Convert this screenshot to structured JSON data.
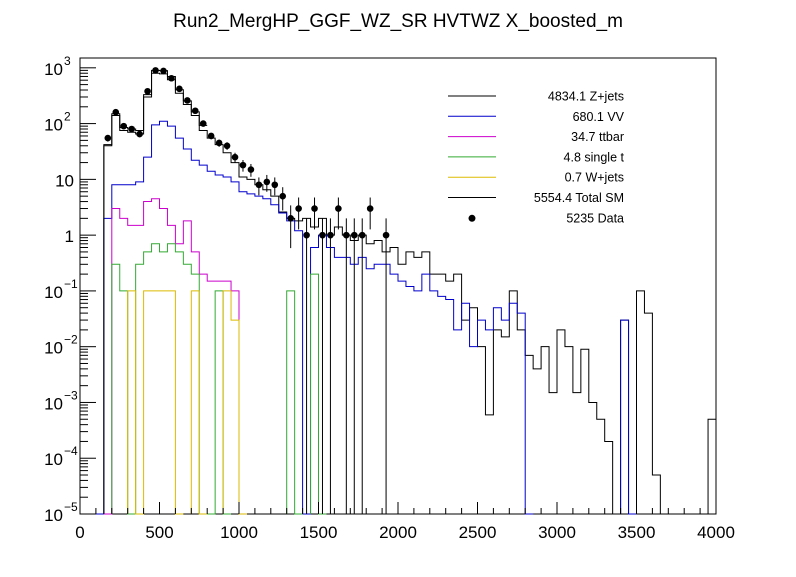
{
  "chart_data": {
    "type": "histogram",
    "title": "Run2_MergHP_GGF_WZ_SR HVTWZ  X_boosted_m",
    "xlabel": "",
    "ylabel": "",
    "xlim": [
      0,
      4000
    ],
    "ylim": [
      1e-05,
      1500
    ],
    "yscale": "log",
    "bin_width": 50,
    "grid": false,
    "legend_position": "top-right",
    "x_ticks": [
      "0",
      "500",
      "1000",
      "1500",
      "2000",
      "2500",
      "3000",
      "3500",
      "4000"
    ],
    "y_ticks": [
      {
        "base": "10",
        "exp": "3"
      },
      {
        "base": "10",
        "exp": "2"
      },
      {
        "base": "10",
        "exp": ""
      },
      {
        "base": "1",
        "exp": ""
      },
      {
        "base": "10",
        "exp": "−1"
      },
      {
        "base": "10",
        "exp": "−2"
      },
      {
        "base": "10",
        "exp": "−3"
      },
      {
        "base": "10",
        "exp": "−4"
      },
      {
        "base": "10",
        "exp": "−5"
      }
    ],
    "series": [
      {
        "name": "Z+jets",
        "total": "4834.1",
        "label": "4834.1 Z+jets",
        "color": "#000000",
        "style": "step",
        "bins": [
          [
            100,
            150,
            1e-05
          ],
          [
            150,
            200,
            40
          ],
          [
            200,
            250,
            140
          ],
          [
            250,
            300,
            75
          ],
          [
            300,
            350,
            70
          ],
          [
            350,
            400,
            65
          ],
          [
            400,
            450,
            300
          ],
          [
            450,
            500,
            800
          ],
          [
            500,
            550,
            780
          ],
          [
            550,
            600,
            610
          ],
          [
            600,
            650,
            350
          ],
          [
            650,
            700,
            220
          ],
          [
            700,
            750,
            140
          ],
          [
            750,
            800,
            75
          ],
          [
            800,
            850,
            55
          ],
          [
            850,
            900,
            42
          ],
          [
            900,
            950,
            30
          ],
          [
            950,
            1000,
            20
          ],
          [
            1000,
            1050,
            11
          ],
          [
            1050,
            1100,
            10
          ],
          [
            1100,
            1150,
            8
          ],
          [
            1150,
            1200,
            6.5
          ],
          [
            1200,
            1250,
            5
          ],
          [
            1250,
            1300,
            2.6
          ],
          [
            1300,
            1350,
            2
          ],
          [
            1350,
            1400,
            1.8
          ],
          [
            1400,
            1450,
            2
          ],
          [
            1450,
            1500,
            1.4
          ],
          [
            1500,
            1550,
            2
          ],
          [
            1550,
            1600,
            1
          ],
          [
            1600,
            1650,
            1.4
          ],
          [
            1650,
            1700,
            1
          ],
          [
            1700,
            1750,
            0.8
          ],
          [
            1750,
            1800,
            1
          ],
          [
            1800,
            1850,
            0.7
          ],
          [
            1850,
            1900,
            0.8
          ],
          [
            1900,
            1950,
            0.5
          ],
          [
            1950,
            2000,
            0.6
          ],
          [
            2000,
            2050,
            0.3
          ],
          [
            2050,
            2100,
            0.5
          ],
          [
            2100,
            2150,
            0.4
          ],
          [
            2150,
            2200,
            0.5
          ],
          [
            2200,
            2250,
            0.2
          ],
          [
            2250,
            2300,
            0.2
          ],
          [
            2300,
            2350,
            0.15
          ],
          [
            2350,
            2400,
            0.2
          ],
          [
            2400,
            2450,
            0.03
          ],
          [
            2450,
            2500,
            0.05
          ],
          [
            2500,
            2550,
            0.01
          ],
          [
            2550,
            2600,
            0.0006
          ],
          [
            2600,
            2650,
            0.02
          ],
          [
            2650,
            2700,
            0.015
          ],
          [
            2700,
            2750,
            0.1
          ],
          [
            2750,
            2800,
            0.02
          ],
          [
            2800,
            2850,
            0.007
          ],
          [
            2850,
            2900,
            0.004
          ],
          [
            2900,
            2950,
            0.01
          ],
          [
            2950,
            3000,
            0.0015
          ],
          [
            3000,
            3050,
            0.02
          ],
          [
            3050,
            3100,
            0.01
          ],
          [
            3100,
            3150,
            0.0015
          ],
          [
            3150,
            3200,
            0.009
          ],
          [
            3200,
            3250,
            0.001
          ],
          [
            3250,
            3300,
            0.0005
          ],
          [
            3300,
            3350,
            0.0002
          ],
          [
            3350,
            3400,
            1e-05
          ],
          [
            3400,
            3450,
            0.03
          ],
          [
            3450,
            3500,
            1e-05
          ],
          [
            3500,
            3550,
            0.1
          ],
          [
            3550,
            3600,
            0.04
          ],
          [
            3600,
            3650,
            5e-05
          ],
          [
            3650,
            3700,
            1e-05
          ],
          [
            3700,
            3750,
            1e-05
          ],
          [
            3950,
            4000,
            0.0005
          ]
        ]
      },
      {
        "name": "VV",
        "total": "680.1",
        "label": "680.1 VV",
        "color": "#0000cc",
        "style": "step",
        "bins": [
          [
            100,
            150,
            1e-05
          ],
          [
            150,
            200,
            2
          ],
          [
            200,
            250,
            8
          ],
          [
            250,
            300,
            8
          ],
          [
            300,
            350,
            8
          ],
          [
            350,
            400,
            9
          ],
          [
            400,
            450,
            25
          ],
          [
            450,
            500,
            95
          ],
          [
            500,
            550,
            110
          ],
          [
            550,
            600,
            90
          ],
          [
            600,
            650,
            55
          ],
          [
            650,
            700,
            35
          ],
          [
            700,
            750,
            22
          ],
          [
            750,
            800,
            18
          ],
          [
            800,
            850,
            14
          ],
          [
            850,
            900,
            12
          ],
          [
            900,
            950,
            11
          ],
          [
            950,
            1000,
            9
          ],
          [
            1000,
            1050,
            6
          ],
          [
            1050,
            1100,
            5.5
          ],
          [
            1100,
            1150,
            5
          ],
          [
            1150,
            1200,
            4.5
          ],
          [
            1200,
            1250,
            3.5
          ],
          [
            1250,
            1300,
            2.5
          ],
          [
            1300,
            1350,
            1.8
          ],
          [
            1350,
            1400,
            1.2
          ],
          [
            1400,
            1450,
            1e-05
          ],
          [
            1450,
            1500,
            0.6
          ],
          [
            1500,
            1550,
            1
          ],
          [
            1550,
            1600,
            0.6
          ],
          [
            1600,
            1650,
            0.4
          ],
          [
            1650,
            1700,
            0.4
          ],
          [
            1700,
            1750,
            0.3
          ],
          [
            1750,
            1800,
            0.4
          ],
          [
            1800,
            1850,
            0.25
          ],
          [
            1850,
            1900,
            0.3
          ],
          [
            1900,
            1950,
            0.3
          ],
          [
            1950,
            2000,
            0.2
          ],
          [
            2000,
            2050,
            0.15
          ],
          [
            2050,
            2100,
            0.12
          ],
          [
            2100,
            2150,
            0.1
          ],
          [
            2150,
            2200,
            0.2
          ],
          [
            2200,
            2250,
            0.1
          ],
          [
            2250,
            2300,
            0.08
          ],
          [
            2300,
            2350,
            0.07
          ],
          [
            2350,
            2400,
            0.02
          ],
          [
            2400,
            2450,
            0.06
          ],
          [
            2450,
            2500,
            0.01
          ],
          [
            2500,
            2550,
            0.03
          ],
          [
            2550,
            2600,
            0.02
          ],
          [
            2600,
            2650,
            0.05
          ],
          [
            2650,
            2700,
            0.03
          ],
          [
            2700,
            2750,
            0.06
          ],
          [
            2750,
            2800,
            0.04
          ],
          [
            2800,
            2850,
            1e-05
          ],
          [
            3400,
            3450,
            0.03
          ],
          [
            3450,
            3500,
            1e-05
          ]
        ]
      },
      {
        "name": "ttbar",
        "total": "34.7",
        "label": "34.7 ttbar",
        "color": "#cc00cc",
        "style": "step",
        "bins": [
          [
            150,
            200,
            1e-05
          ],
          [
            200,
            250,
            3
          ],
          [
            250,
            300,
            2
          ],
          [
            300,
            350,
            1.5
          ],
          [
            350,
            400,
            1.5
          ],
          [
            400,
            450,
            4
          ],
          [
            450,
            500,
            4.5
          ],
          [
            500,
            550,
            3
          ],
          [
            550,
            600,
            1.5
          ],
          [
            600,
            650,
            0.7
          ],
          [
            650,
            700,
            1.8
          ],
          [
            700,
            750,
            0.5
          ],
          [
            750,
            800,
            0.2
          ],
          [
            800,
            850,
            0.15
          ],
          [
            850,
            900,
            0.15
          ],
          [
            900,
            950,
            0.15
          ],
          [
            950,
            1000,
            0.1
          ],
          [
            1000,
            1050,
            1e-05
          ]
        ]
      },
      {
        "name": "single t",
        "total": "4.8",
        "label": "4.8 single t",
        "color": "#33aa33",
        "style": "step",
        "bins": [
          [
            200,
            250,
            0.3
          ],
          [
            250,
            300,
            0.1
          ],
          [
            300,
            350,
            1e-05
          ],
          [
            350,
            400,
            0.3
          ],
          [
            400,
            450,
            0.5
          ],
          [
            450,
            500,
            0.7
          ],
          [
            500,
            550,
            0.5
          ],
          [
            550,
            600,
            0.7
          ],
          [
            600,
            650,
            0.5
          ],
          [
            650,
            700,
            0.3
          ],
          [
            700,
            750,
            0.2
          ],
          [
            750,
            800,
            1e-05
          ],
          [
            800,
            850,
            1e-05
          ],
          [
            850,
            900,
            0.1
          ],
          [
            900,
            950,
            1e-05
          ],
          [
            1300,
            1350,
            0.1
          ],
          [
            1350,
            1400,
            1e-05
          ],
          [
            1450,
            1500,
            0.2
          ],
          [
            1500,
            1550,
            1e-05
          ]
        ]
      },
      {
        "name": "W+jets",
        "total": "0.7",
        "label": "0.7 W+jets",
        "color": "#ddbb00",
        "style": "step",
        "bins": [
          [
            300,
            350,
            0.1
          ],
          [
            350,
            400,
            1e-05
          ],
          [
            400,
            450,
            0.1
          ],
          [
            450,
            500,
            0.1
          ],
          [
            500,
            550,
            0.1
          ],
          [
            550,
            600,
            0.1
          ],
          [
            600,
            650,
            1e-05
          ],
          [
            700,
            750,
            0.1
          ],
          [
            750,
            800,
            1e-05
          ],
          [
            900,
            950,
            0.1
          ],
          [
            950,
            1000,
            0.03
          ],
          [
            1000,
            1050,
            1e-05
          ]
        ]
      },
      {
        "name": "Total SM",
        "total": "5554.4",
        "label": "5554.4 Total SM",
        "color": "#000000",
        "style": "step",
        "bins": [
          [
            150,
            200,
            42
          ],
          [
            200,
            250,
            150
          ],
          [
            250,
            300,
            85
          ],
          [
            300,
            350,
            80
          ],
          [
            350,
            400,
            75
          ],
          [
            400,
            450,
            330
          ],
          [
            450,
            500,
            900
          ],
          [
            500,
            550,
            890
          ],
          [
            550,
            600,
            700
          ],
          [
            600,
            650,
            405
          ],
          [
            650,
            700,
            255
          ],
          [
            700,
            750,
            162
          ],
          [
            750,
            800,
            93
          ]
        ]
      },
      {
        "name": "Data",
        "total": "5235",
        "label": "5235 Data",
        "color": "#000000",
        "style": "points",
        "points": [
          [
            175,
            55
          ],
          [
            225,
            160
          ],
          [
            275,
            90
          ],
          [
            325,
            80
          ],
          [
            375,
            65
          ],
          [
            425,
            380
          ],
          [
            475,
            900
          ],
          [
            525,
            880
          ],
          [
            575,
            650
          ],
          [
            625,
            420
          ],
          [
            675,
            260
          ],
          [
            725,
            170
          ],
          [
            775,
            100
          ],
          [
            825,
            60
          ],
          [
            875,
            45
          ],
          [
            925,
            40
          ],
          [
            975,
            25
          ],
          [
            1025,
            18
          ],
          [
            1075,
            15
          ],
          [
            1125,
            8
          ],
          [
            1175,
            9
          ],
          [
            1225,
            8
          ],
          [
            1275,
            5
          ],
          [
            1325,
            2
          ],
          [
            1375,
            3
          ],
          [
            1425,
            1
          ],
          [
            1475,
            3
          ],
          [
            1525,
            1
          ],
          [
            1575,
            1
          ],
          [
            1625,
            3
          ],
          [
            1675,
            1
          ],
          [
            1725,
            1
          ],
          [
            1775,
            1
          ],
          [
            1825,
            3
          ],
          [
            1925,
            1
          ]
        ]
      }
    ]
  }
}
